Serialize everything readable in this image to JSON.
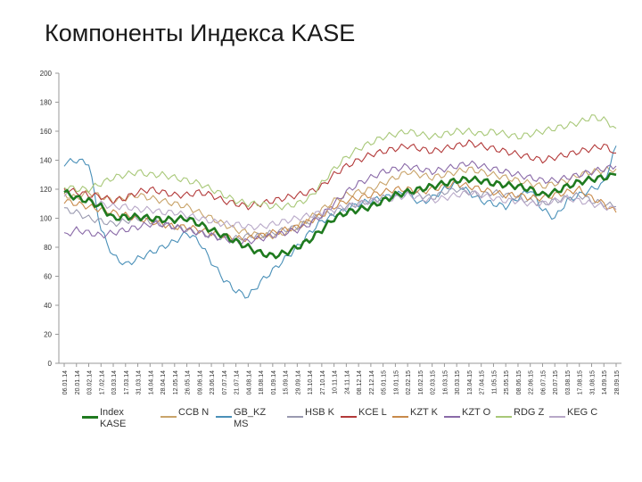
{
  "title": "Компоненты Индекса KASE",
  "chart_data": {
    "type": "line",
    "title": "Компоненты Индекса KASE",
    "ylim": [
      0,
      200
    ],
    "yticks": [
      0,
      20,
      40,
      60,
      80,
      100,
      120,
      140,
      160,
      180,
      200
    ],
    "grid": false,
    "legend_position": "bottom",
    "x": [
      "06.01.14",
      "20.01.14",
      "03.02.14",
      "17.02.14",
      "03.03.14",
      "17.03.14",
      "31.03.14",
      "14.04.14",
      "28.04.14",
      "12.05.14",
      "26.05.14",
      "09.06.14",
      "23.06.14",
      "07.07.14",
      "21.07.14",
      "04.08.14",
      "18.08.14",
      "01.09.14",
      "15.09.14",
      "29.09.14",
      "13.10.14",
      "27.10.14",
      "10.11.14",
      "24.11.14",
      "08.12.14",
      "22.12.14",
      "05.01.15",
      "19.01.15",
      "02.02.15",
      "16.02.15",
      "02.03.15",
      "16.03.15",
      "30.03.15",
      "13.04.15",
      "27.04.15",
      "11.05.15",
      "25.05.15",
      "08.06.15",
      "22.06.15",
      "06.07.15",
      "20.07.15",
      "03.08.15",
      "17.08.15",
      "31.08.15",
      "14.09.15",
      "28.09.15"
    ],
    "series": [
      {
        "name": "Index KASE",
        "color": "#1f7a1f",
        "values": [
          118,
          114,
          112,
          108,
          100,
          101,
          101,
          100,
          99,
          99,
          100,
          96,
          92,
          88,
          84,
          80,
          76,
          74,
          76,
          80,
          85,
          92,
          100,
          104,
          106,
          108,
          112,
          116,
          118,
          120,
          122,
          124,
          126,
          127,
          126,
          124,
          123,
          122,
          120,
          116,
          118,
          122,
          125,
          127,
          128,
          130
        ]
      },
      {
        "name": "CCB N",
        "color": "#c9a46a",
        "values": [
          116,
          114,
          118,
          115,
          112,
          114,
          116,
          114,
          112,
          110,
          108,
          104,
          100,
          96,
          92,
          90,
          88,
          88,
          90,
          94,
          100,
          106,
          112,
          116,
          118,
          120,
          124,
          128,
          132,
          130,
          128,
          130,
          132,
          134,
          132,
          130,
          128,
          126,
          124,
          122,
          124,
          126,
          130,
          132,
          133,
          134
        ]
      },
      {
        "name": "GB_KZ MS",
        "color": "#4a90b8",
        "values": [
          138,
          140,
          138,
          92,
          74,
          68,
          72,
          76,
          80,
          84,
          90,
          84,
          70,
          58,
          50,
          46,
          56,
          64,
          72,
          80,
          90,
          98,
          102,
          106,
          110,
          112,
          114,
          116,
          118,
          110,
          114,
          120,
          124,
          118,
          112,
          110,
          108,
          114,
          120,
          106,
          100,
          112,
          116,
          120,
          124,
          150
        ]
      },
      {
        "name": "HSB K",
        "color": "#9a9ab0",
        "values": [
          106,
          104,
          100,
          98,
          96,
          98,
          100,
          98,
          96,
          94,
          92,
          90,
          88,
          86,
          86,
          88,
          88,
          90,
          92,
          94,
          98,
          102,
          104,
          108,
          110,
          112,
          114,
          116,
          118,
          116,
          114,
          118,
          120,
          118,
          116,
          118,
          116,
          114,
          112,
          110,
          112,
          114,
          116,
          112,
          110,
          108
        ]
      },
      {
        "name": "KCE L",
        "color": "#b33a3a",
        "values": [
          120,
          118,
          116,
          115,
          112,
          114,
          118,
          120,
          118,
          116,
          116,
          118,
          116,
          112,
          110,
          108,
          110,
          112,
          114,
          116,
          118,
          122,
          130,
          136,
          140,
          144,
          146,
          148,
          150,
          148,
          146,
          148,
          150,
          152,
          150,
          148,
          146,
          144,
          142,
          140,
          142,
          144,
          146,
          148,
          150,
          145
        ]
      },
      {
        "name": "KZT K",
        "color": "#c88a4a",
        "values": [
          112,
          110,
          108,
          106,
          104,
          102,
          100,
          98,
          96,
          94,
          94,
          92,
          90,
          88,
          86,
          86,
          88,
          90,
          92,
          94,
          98,
          102,
          108,
          112,
          114,
          116,
          118,
          120,
          120,
          118,
          120,
          122,
          124,
          122,
          120,
          118,
          116,
          116,
          114,
          114,
          116,
          118,
          120,
          114,
          110,
          104
        ]
      },
      {
        "name": "KZT O",
        "color": "#8a6aa8",
        "values": [
          88,
          92,
          90,
          88,
          90,
          92,
          94,
          96,
          96,
          94,
          92,
          90,
          88,
          86,
          84,
          84,
          86,
          88,
          90,
          92,
          96,
          102,
          110,
          118,
          124,
          128,
          132,
          134,
          136,
          134,
          132,
          134,
          136,
          138,
          136,
          134,
          132,
          130,
          128,
          126,
          126,
          128,
          130,
          132,
          134,
          136
        ]
      },
      {
        "name": "RDG Z",
        "color": "#a8c878",
        "values": [
          122,
          120,
          120,
          124,
          128,
          130,
          132,
          130,
          130,
          128,
          126,
          124,
          120,
          116,
          112,
          110,
          110,
          108,
          108,
          110,
          114,
          124,
          134,
          142,
          148,
          152,
          156,
          158,
          160,
          158,
          156,
          158,
          160,
          160,
          158,
          160,
          158,
          156,
          158,
          160,
          162,
          164,
          166,
          170,
          168,
          162
        ]
      },
      {
        "name": "KEG C",
        "color": "#b8a8c8",
        "values": [
          116,
          114,
          112,
          110,
          108,
          108,
          106,
          106,
          104,
          104,
          102,
          100,
          98,
          96,
          96,
          94,
          94,
          96,
          98,
          100,
          102,
          104,
          106,
          108,
          110,
          112,
          112,
          114,
          116,
          114,
          112,
          114,
          116,
          118,
          116,
          114,
          112,
          112,
          110,
          110,
          112,
          114,
          112,
          110,
          108,
          106
        ]
      }
    ]
  }
}
